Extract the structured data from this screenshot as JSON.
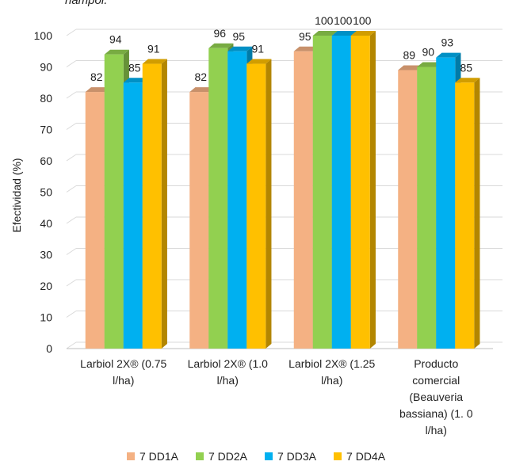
{
  "title_fragment": "hampol.",
  "chart_data": {
    "type": "bar",
    "title": "",
    "ylabel": "Efectividad (%)",
    "xlabel": "",
    "ylim": [
      0,
      100
    ],
    "yticks": [
      0,
      10,
      20,
      30,
      40,
      50,
      60,
      70,
      80,
      90,
      100
    ],
    "categories": [
      [
        "Larbiol 2X® (0.75",
        "l/ha)"
      ],
      [
        "Larbiol 2X® (1.0",
        "l/ha)"
      ],
      [
        "Larbiol 2X® (1.25",
        "l/ha)"
      ],
      [
        "Producto",
        "comercial",
        "(Beauveria",
        "bassiana) (1. 0",
        "l/ha)"
      ]
    ],
    "series": [
      {
        "name": "7 DD1A",
        "color": "#f4b183",
        "values": [
          82,
          82,
          95,
          89
        ]
      },
      {
        "name": "7 DD2A",
        "color": "#92d050",
        "values": [
          94,
          96,
          100,
          90
        ]
      },
      {
        "name": "7 DD3A",
        "color": "#00b0f0",
        "values": [
          85,
          95,
          100,
          93
        ]
      },
      {
        "name": "7 DD4A",
        "color": "#ffc000",
        "values": [
          91,
          91,
          100,
          85
        ]
      }
    ],
    "grid": true,
    "legend_position": "bottom",
    "three_d": true
  }
}
